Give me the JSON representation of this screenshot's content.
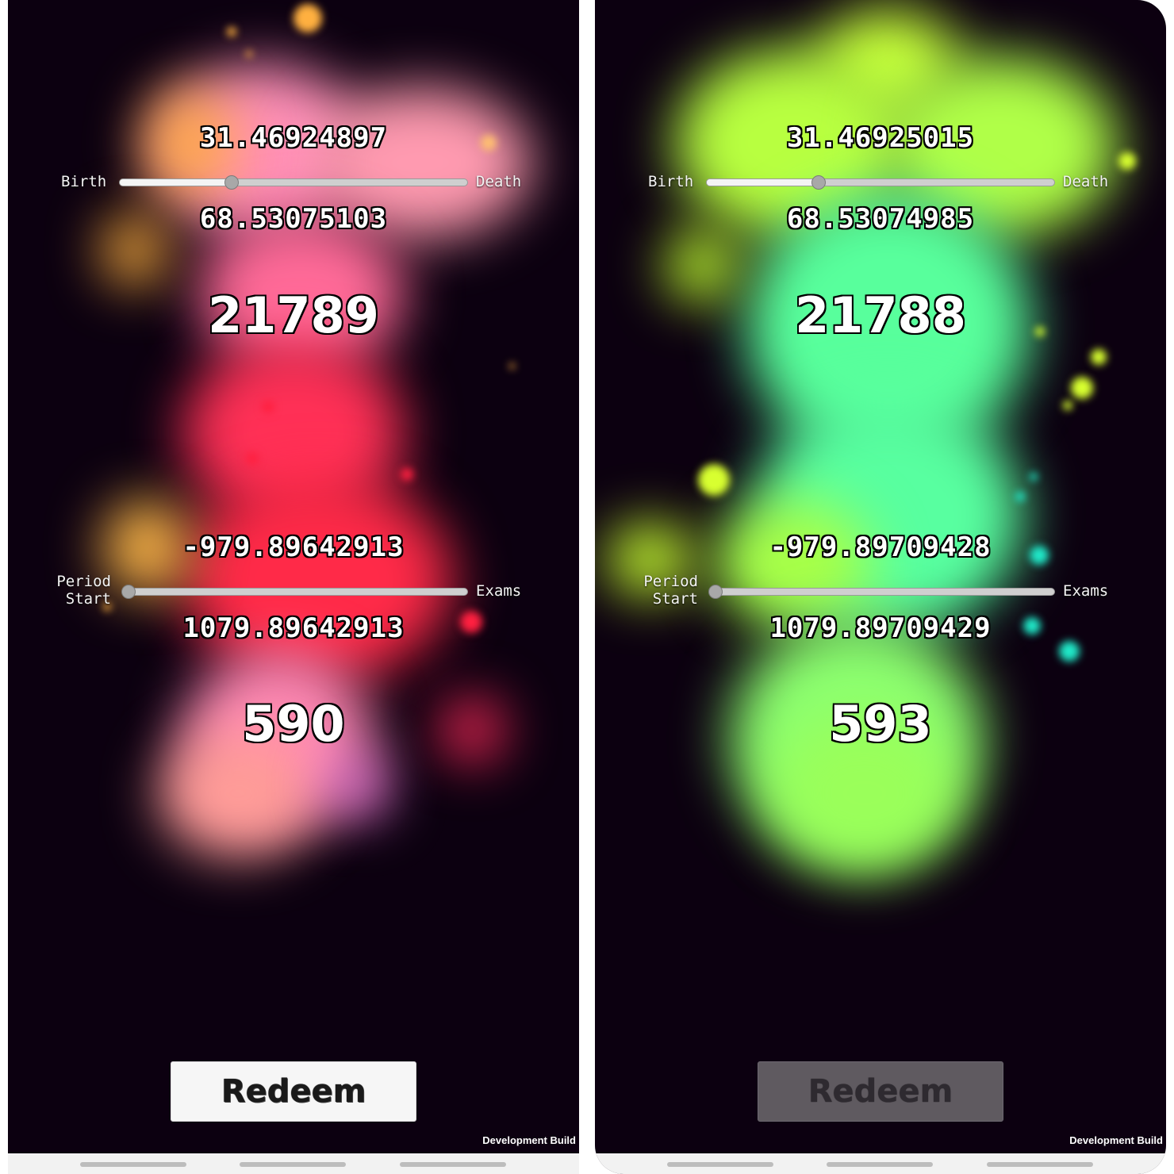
{
  "screens": [
    {
      "top_value": "31.46924897",
      "bottom_value": "68.53075103",
      "primary_count": "21789",
      "period_low": "-979.89642913",
      "period_high": "1079.89642913",
      "secondary_count": "590",
      "slider1": {
        "left_label": "Birth",
        "right_label": "Death",
        "value": 0.32
      },
      "slider2": {
        "left_label_line1": "Period",
        "left_label_line2": "Start",
        "right_label": "Exams",
        "value": 0.0
      },
      "redeem_label": "Redeem",
      "redeem_state": "enabled",
      "dev_label": "Development Build",
      "palette": [
        "#ff8ac8",
        "#ff2a4a",
        "#ffb040",
        "#ff9aa0",
        "#e070d0"
      ]
    },
    {
      "top_value": "31.46925015",
      "bottom_value": "68.53074985",
      "primary_count": "21788",
      "period_low": "-979.89709428",
      "period_high": "1079.89709429",
      "secondary_count": "593",
      "slider1": {
        "left_label": "Birth",
        "right_label": "Death",
        "value": 0.32
      },
      "slider2": {
        "left_label_line1": "Period",
        "left_label_line2": "Start",
        "right_label": "Exams",
        "value": 0.0
      },
      "redeem_label": "Redeem",
      "redeem_state": "disabled",
      "dev_label": "Development Build",
      "palette": [
        "#b6ff3a",
        "#50ffa0",
        "#d8ff20",
        "#20e0c0",
        "#8cff70"
      ]
    }
  ]
}
